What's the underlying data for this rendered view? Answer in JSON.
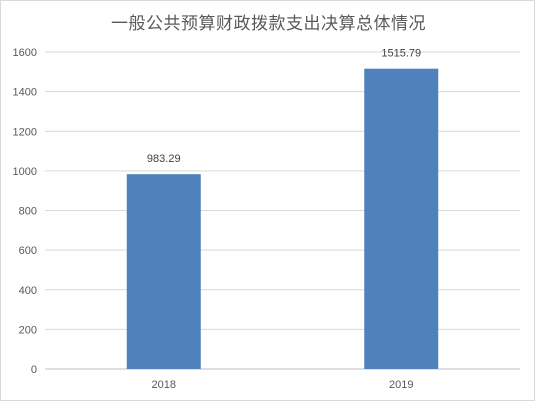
{
  "chart_data": {
    "type": "bar",
    "title": "一般公共预算财政拨款支出决算总体情况",
    "xlabel": "",
    "ylabel": "",
    "categories": [
      "2018",
      "2019"
    ],
    "values": [
      983.29,
      1515.79
    ],
    "data_labels": [
      "983.29",
      "1515.79"
    ],
    "ylim": [
      0,
      1600
    ],
    "yticks": [
      0,
      200,
      400,
      600,
      800,
      1000,
      1200,
      1400,
      1600
    ],
    "grid": true,
    "legend": "none",
    "bar_color": "#4f81bd",
    "grid_color": "#d9d9d9",
    "axis_color": "#bfbfbf"
  }
}
